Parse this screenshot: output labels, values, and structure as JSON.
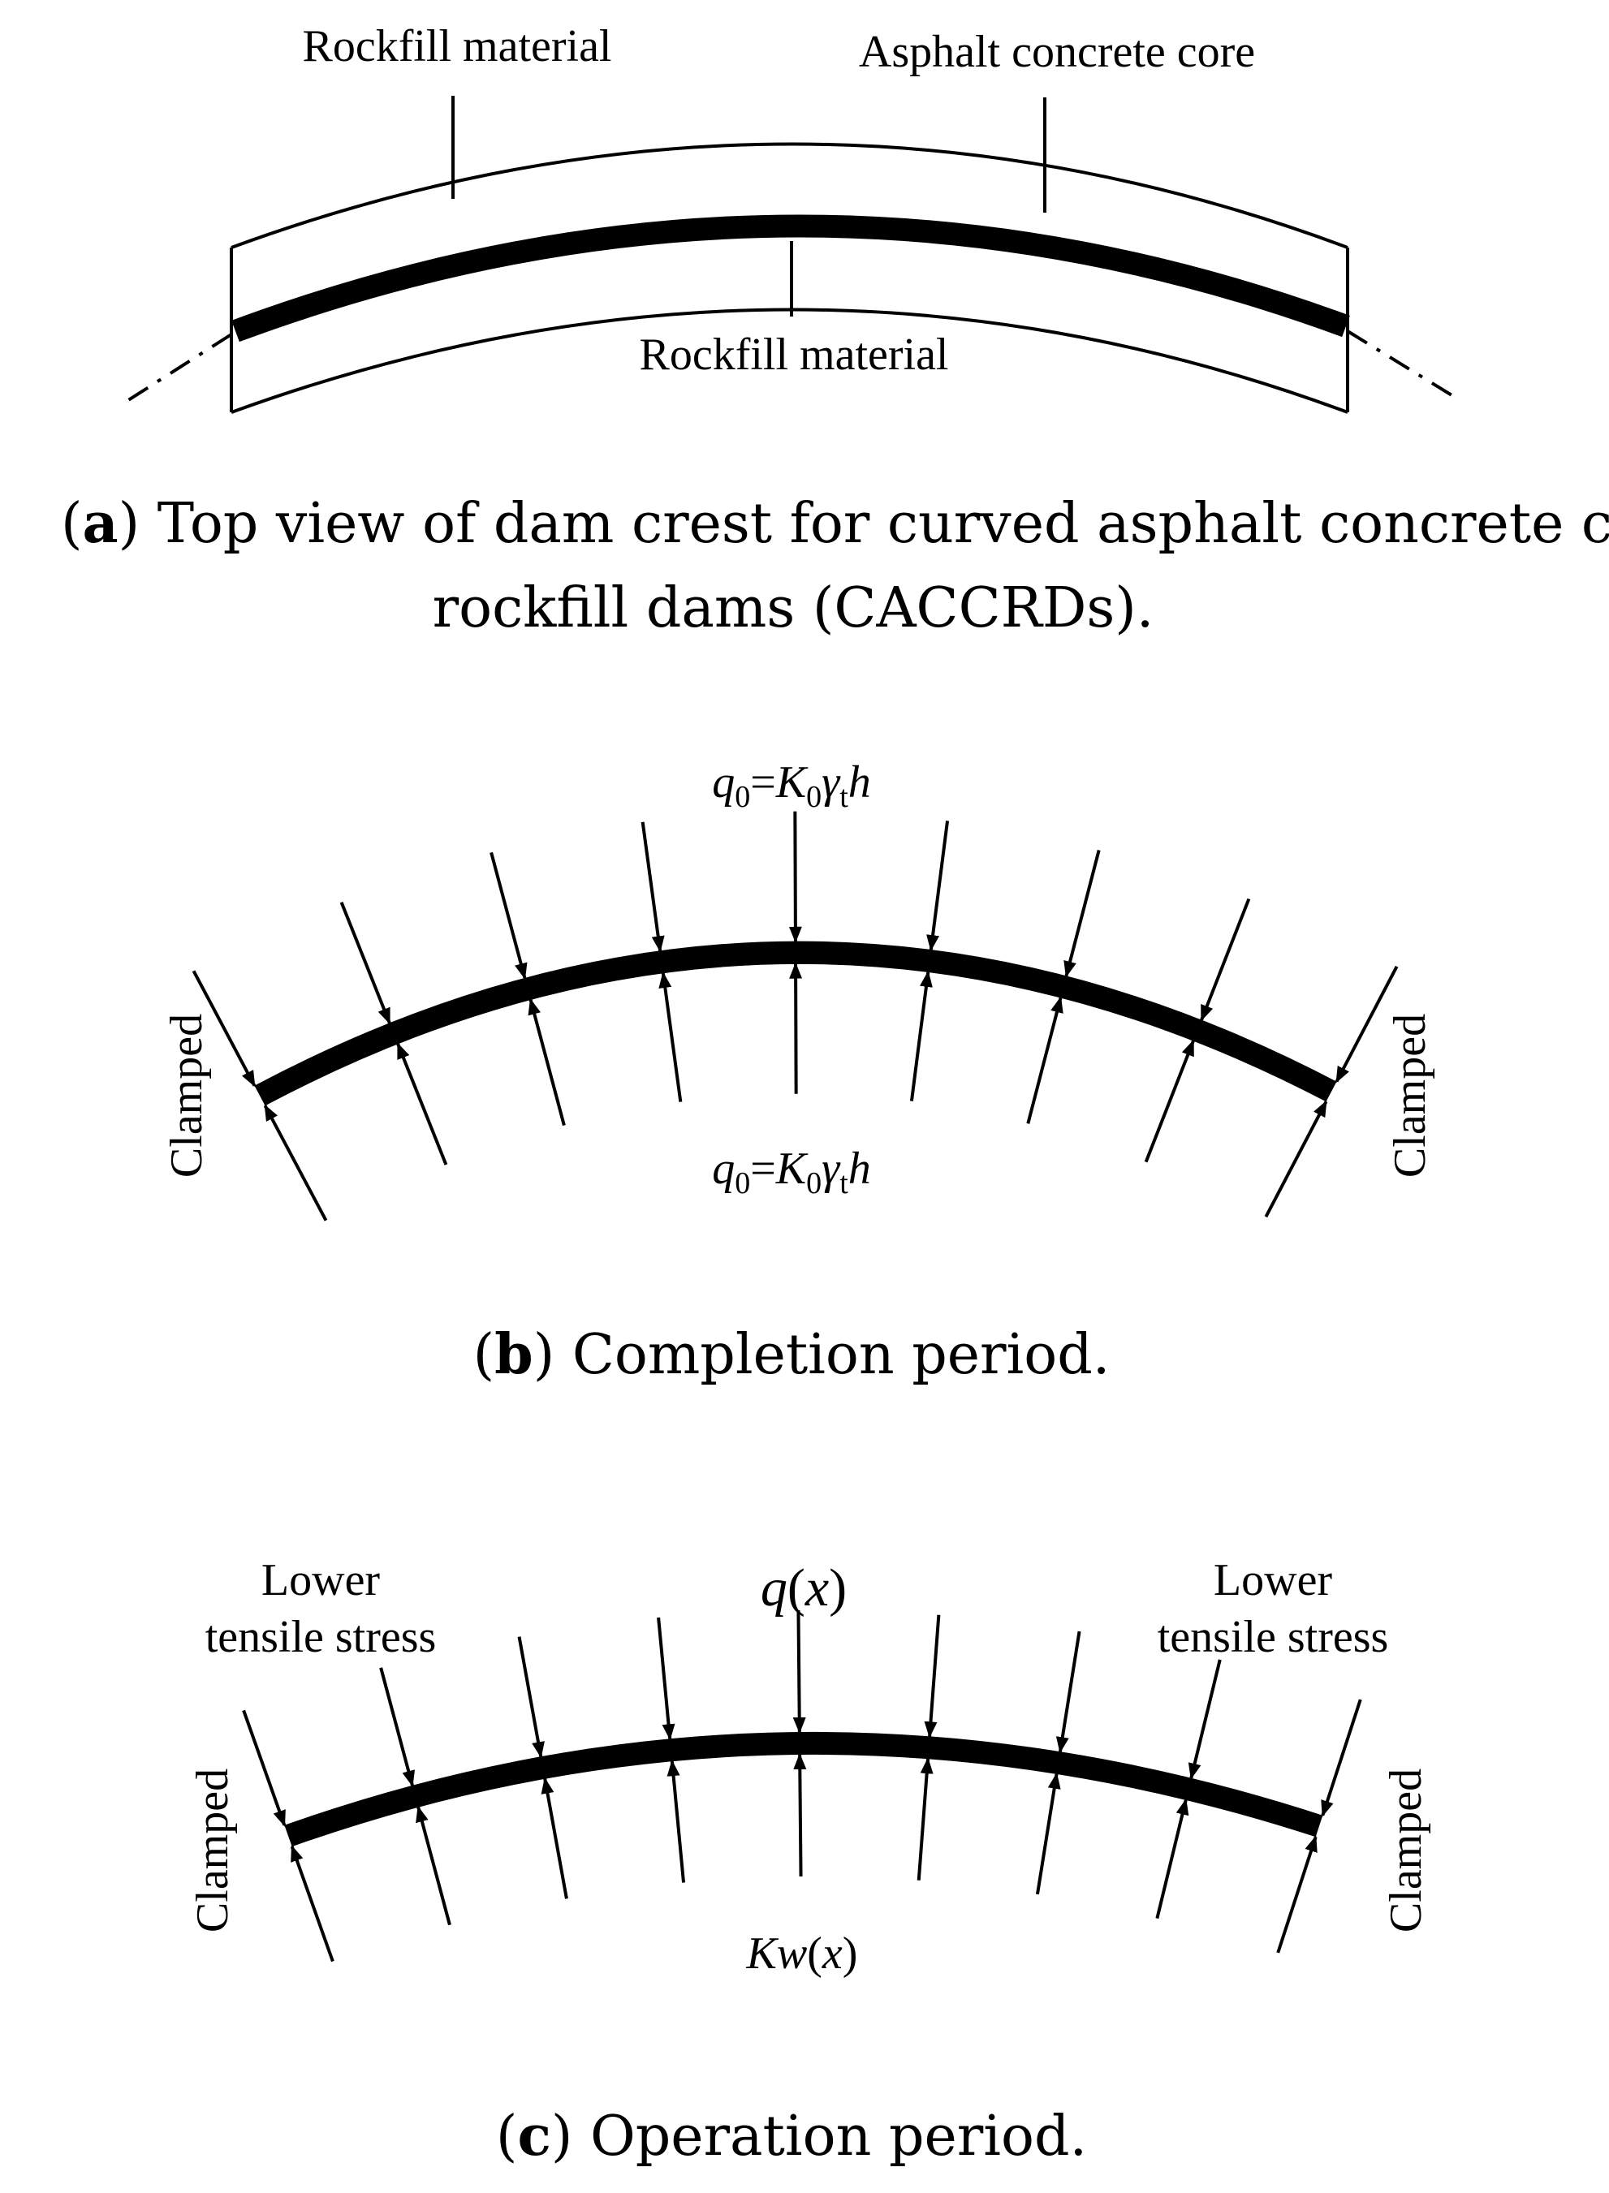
{
  "panel_a": {
    "label_rockfill_top": "Rockfill material",
    "label_core": "Asphalt concrete core",
    "label_rockfill_bottom": "Rockfill material",
    "caption": {
      "letter": "a",
      "line1": ") Top view of dam crest for curved asphalt concrete core",
      "line2": "rockfill dams (CACCRDs)."
    }
  },
  "panel_b": {
    "load_top": {
      "q": "q",
      "q_sub": "0",
      "eq": "=",
      "K": "K",
      "K_sub": "0",
      "gamma": "γ",
      "gamma_sub": "t",
      "h": "h"
    },
    "load_bottom": {
      "q": "q",
      "q_sub": "0",
      "eq": "=",
      "K": "K",
      "K_sub": "0",
      "gamma": "γ",
      "gamma_sub": "t",
      "h": "h"
    },
    "left_support": "Clamped",
    "right_support": "Clamped",
    "caption": {
      "letter": "b",
      "text": ") Completion period."
    }
  },
  "panel_c": {
    "left_note_1": "Lower",
    "left_note_2": "tensile stress",
    "right_note_1": "Lower",
    "right_note_2": "tensile stress",
    "load_top": {
      "q": "q",
      "open": "(",
      "x": "x",
      "close": ")"
    },
    "load_bottom": {
      "K": "K",
      "w": "w",
      "open": "(",
      "x": "x",
      "close": ")"
    },
    "left_support": "Clamped",
    "right_support": "Clamped",
    "caption": {
      "letter": "c",
      "text": ") Operation period."
    }
  }
}
